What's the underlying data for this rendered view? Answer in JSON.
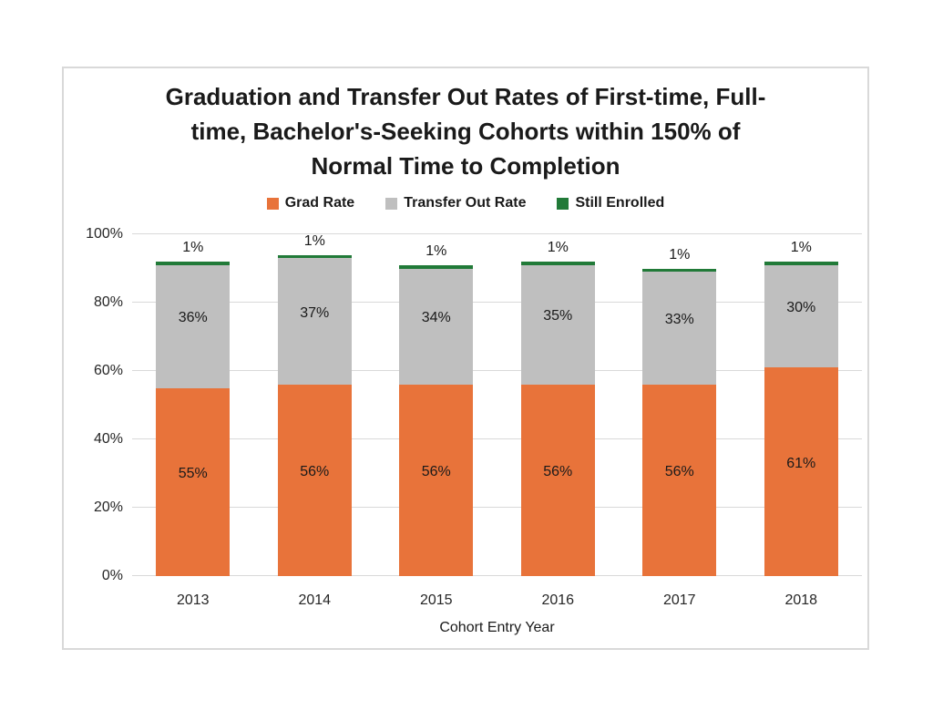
{
  "page": {
    "background_color": "#ffffff"
  },
  "chart": {
    "title_lines": [
      "Graduation and Transfer Out Rates of First-time, Full-",
      "time, Bachelor's-Seeking Cohorts within 150% of",
      "Normal Time to Completion"
    ],
    "border_color": "#D9D9D9",
    "gridline_color": "#D9D9D9",
    "text_color": "#1a1a1a"
  },
  "chart_data": {
    "type": "bar",
    "stacked": true,
    "title": "Graduation and Transfer Out Rates of First-time, Full-time, Bachelor's-Seeking Cohorts within 150% of Normal Time to Completion",
    "xlabel": "Cohort Entry Year",
    "ylabel": "",
    "categories": [
      "2013",
      "2014",
      "2015",
      "2016",
      "2017",
      "2018"
    ],
    "series": [
      {
        "name": "Grad Rate",
        "color": "#E8733A",
        "values": [
          55,
          56,
          56,
          56,
          56,
          61
        ],
        "labels": [
          "55%",
          "56%",
          "56%",
          "56%",
          "56%",
          "61%"
        ],
        "label_placement": "inside"
      },
      {
        "name": "Transfer Out Rate",
        "color": "#BFBFBF",
        "values": [
          36,
          37,
          34,
          35,
          33,
          30
        ],
        "labels": [
          "36%",
          "37%",
          "34%",
          "35%",
          "33%",
          "30%"
        ],
        "label_placement": "inside"
      },
      {
        "name": "Still Enrolled",
        "color": "#217A38",
        "values": [
          1,
          1,
          1,
          1,
          1,
          1
        ],
        "labels": [
          "1%",
          "1%",
          "1%",
          "1%",
          "1%",
          "1%"
        ],
        "label_placement": "above"
      }
    ],
    "stack_totals": [
      92,
      94,
      91,
      92,
      90,
      92
    ],
    "ylim": [
      0,
      100
    ],
    "yticks": [
      0,
      20,
      40,
      60,
      80,
      100
    ],
    "ytick_labels": [
      "0%",
      "20%",
      "40%",
      "60%",
      "80%",
      "100%"
    ],
    "grid": true,
    "legend_position": "top",
    "data_labels": true
  }
}
